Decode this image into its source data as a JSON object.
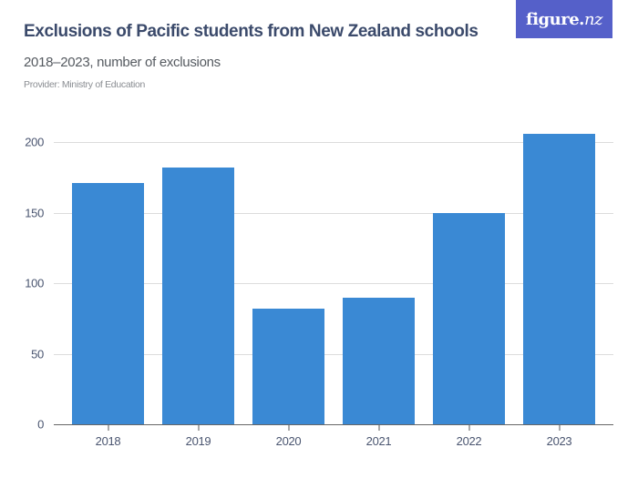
{
  "header": {
    "title": "Exclusions of Pacific students from New Zealand schools",
    "subtitle": "2018–2023, number of exclusions",
    "provider": "Provider: Ministry of Education"
  },
  "logo": {
    "text_main": "figure.",
    "text_nz": "nz",
    "background_color": "#5560c9"
  },
  "colors": {
    "bar": "#3a89d4",
    "title": "#3b4a6b",
    "gridline": "#dcdcdc"
  },
  "chart_data": {
    "type": "bar",
    "title": "Exclusions of Pacific students from New Zealand schools",
    "subtitle": "2018–2023, number of exclusions",
    "source": "Provider: Ministry of Education",
    "categories": [
      "2018",
      "2019",
      "2020",
      "2021",
      "2022",
      "2023"
    ],
    "values": [
      171,
      182,
      82,
      90,
      150,
      206
    ],
    "xlabel": "",
    "ylabel": "",
    "ylim": [
      0,
      200
    ],
    "yticks": [
      0,
      50,
      100,
      150,
      200
    ],
    "ytick_labels": [
      "0",
      "50",
      "100",
      "150",
      "200"
    ],
    "grid": true,
    "legend": null
  }
}
